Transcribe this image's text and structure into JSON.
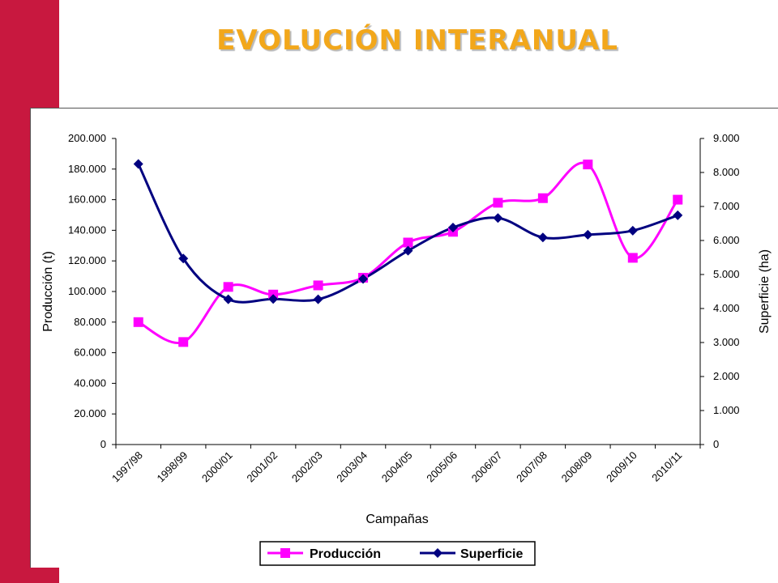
{
  "slide": {
    "title": "EVOLUCIÓN INTERANUAL",
    "accent_color": "#c8183f",
    "title_color": "#f2a71b"
  },
  "chart_data": {
    "type": "line",
    "smoothed": true,
    "categories": [
      "1997/98",
      "1998/99",
      "2000/01",
      "2001/02",
      "2002/03",
      "2003/04",
      "2004/05",
      "2005/06",
      "2006/07",
      "2007/08",
      "2008/09",
      "2009/10",
      "2010/11"
    ],
    "series": [
      {
        "name": "Producción",
        "axis": "left",
        "color": "#ff00ff",
        "marker": "square",
        "values": [
          80000,
          67000,
          103000,
          98000,
          104000,
          109000,
          132000,
          139000,
          158000,
          161000,
          183000,
          122000,
          160000
        ]
      },
      {
        "name": "Superficie",
        "axis": "right",
        "color": "#000080",
        "marker": "diamond",
        "values": [
          8250,
          5470,
          4270,
          4280,
          4270,
          4870,
          5700,
          6380,
          6660,
          6090,
          6170,
          6290,
          6740
        ]
      }
    ],
    "xlabel": "Campañas",
    "ylabel": "Producción (t)",
    "y2label": "Superficie (ha)",
    "ylim": [
      0,
      200000
    ],
    "y2lim": [
      0,
      9000
    ],
    "yticks": [
      "0",
      "20.000",
      "40.000",
      "60.000",
      "80.000",
      "100.000",
      "120.000",
      "140.000",
      "160.000",
      "180.000",
      "200.000"
    ],
    "y2ticks": [
      "0",
      "1.000",
      "2.000",
      "3.000",
      "4.000",
      "5.000",
      "6.000",
      "7.000",
      "8.000",
      "9.000"
    ],
    "grid": false,
    "legend": "bottom"
  }
}
